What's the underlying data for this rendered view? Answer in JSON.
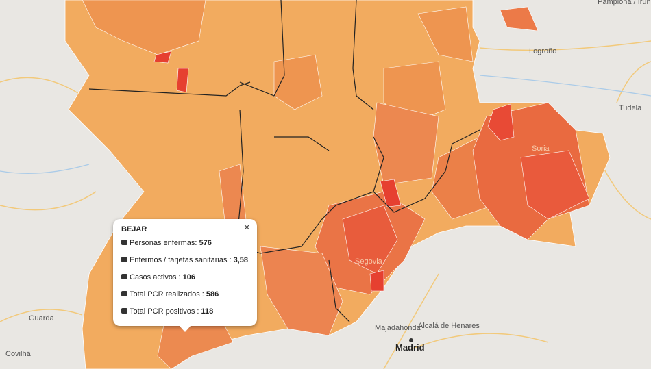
{
  "map_labels": [
    "Pamplona / Iruña",
    "Logroño",
    "Tudela",
    "Soria",
    "Segovia",
    "Guarda",
    "Covilhã",
    "Majadahonda",
    "Alcalá de Henares",
    "Madrid"
  ],
  "popup": {
    "title": "BEJAR",
    "close": "×",
    "rows": [
      {
        "label": "Personas enfermas:",
        "value": "576"
      },
      {
        "label": "Enfermos / tarjetas sanitarias :",
        "value": "3,58"
      },
      {
        "label": "Casos activos :",
        "value": "106"
      },
      {
        "label": "Total PCR realizados :",
        "value": "586"
      },
      {
        "label": "Total PCR positivos :",
        "value": "118"
      }
    ]
  }
}
